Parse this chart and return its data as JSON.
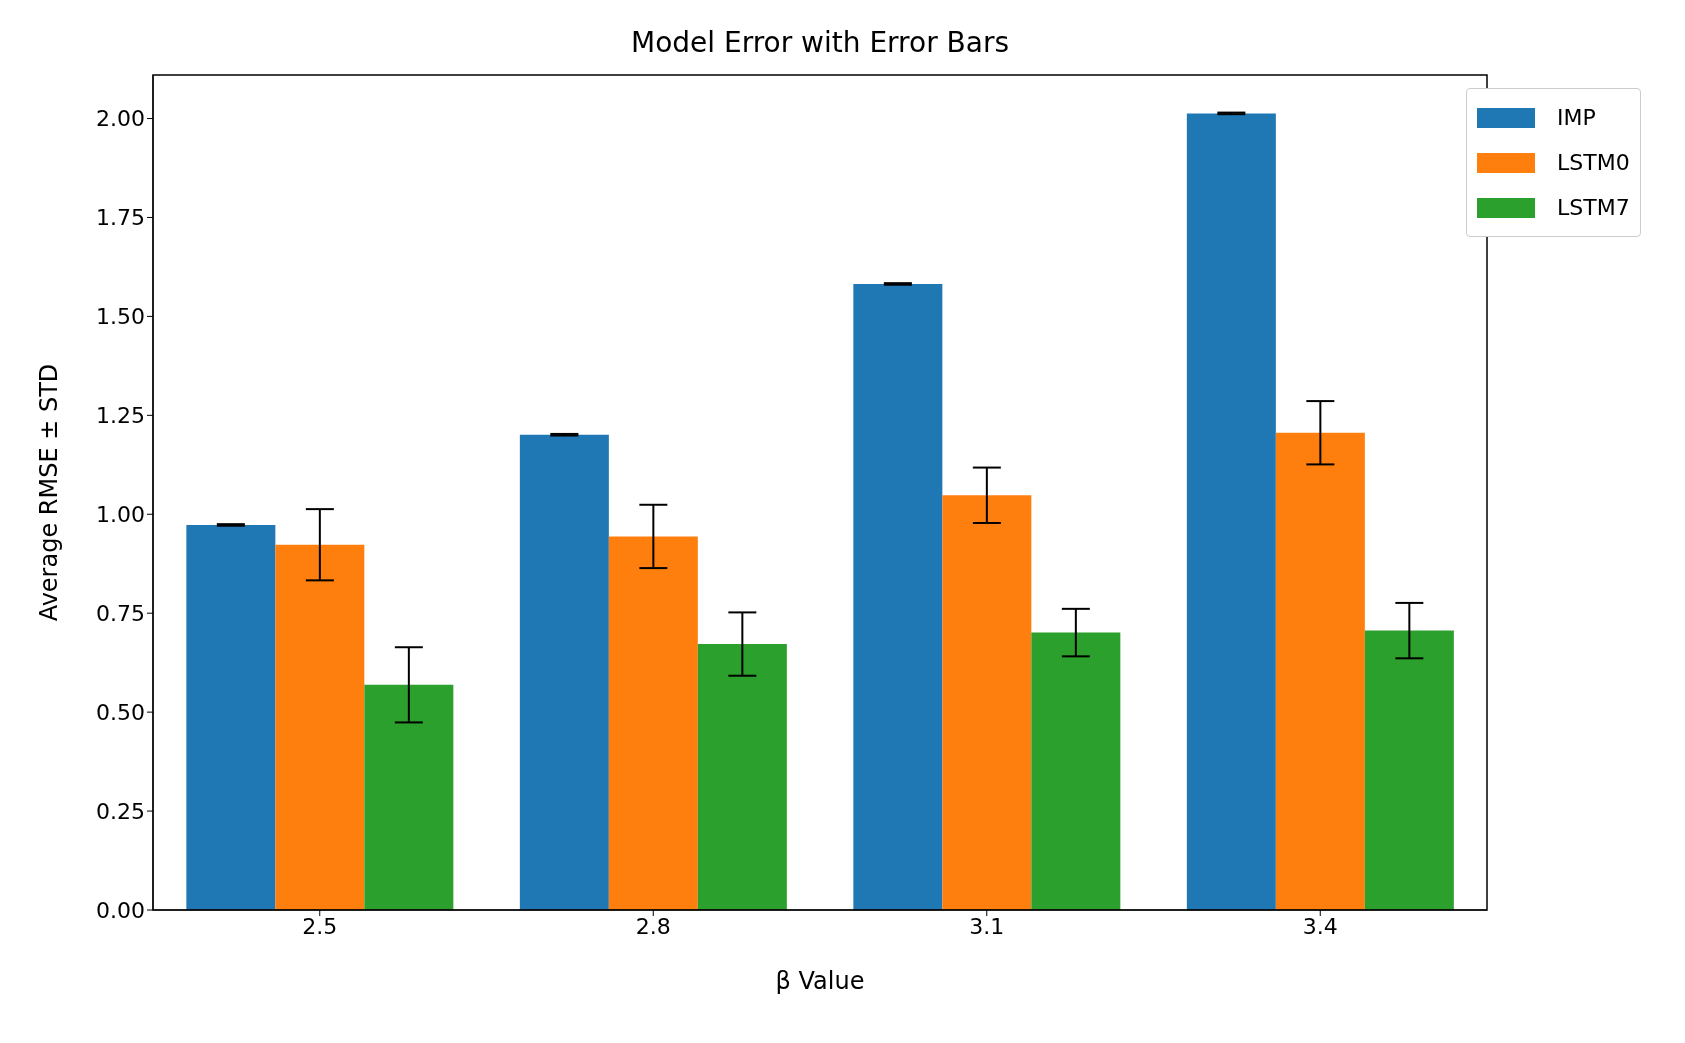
{
  "chart_data": {
    "type": "bar",
    "title": "Model Error with Error Bars",
    "xlabel": "β Value",
    "ylabel": "Average RMSE ± STD",
    "categories": [
      "2.5",
      "2.8",
      "3.1",
      "3.4"
    ],
    "series": [
      {
        "name": "IMP",
        "color": "#1f77b4",
        "values": [
          0.973,
          1.201,
          1.582,
          2.013
        ],
        "errors": [
          0.002,
          0.002,
          0.002,
          0.002
        ]
      },
      {
        "name": "LSTM0",
        "color": "#ff7f0e",
        "values": [
          0.923,
          0.944,
          1.048,
          1.206
        ],
        "errors": [
          0.09,
          0.08,
          0.07,
          0.08
        ]
      },
      {
        "name": "LSTM7",
        "color": "#2ca02c",
        "values": [
          0.569,
          0.672,
          0.701,
          0.706
        ],
        "errors": [
          0.095,
          0.08,
          0.06,
          0.07
        ]
      }
    ],
    "ylim": [
      0,
      2.11
    ],
    "yticks": [
      {
        "value": 0,
        "label": "0.00"
      },
      {
        "value": 0.25,
        "label": "0.25"
      },
      {
        "value": 0.5,
        "label": "0.50"
      },
      {
        "value": 0.75,
        "label": "0.75"
      },
      {
        "value": 1,
        "label": "1.00"
      },
      {
        "value": 1.25,
        "label": "1.25"
      },
      {
        "value": 1.5,
        "label": "1.50"
      },
      {
        "value": 1.75,
        "label": "1.75"
      },
      {
        "value": 2,
        "label": "2.00"
      }
    ],
    "grid": false,
    "legend": "top right"
  }
}
